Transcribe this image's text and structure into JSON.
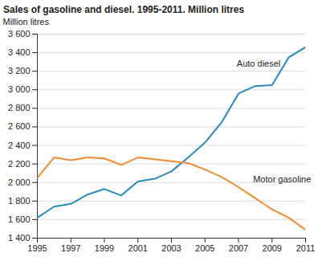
{
  "chart_data": {
    "type": "line",
    "title": "Sales of gasoline and diesel. 1995-2011. Million litres",
    "y_label": "Million litres",
    "x": [
      1995,
      1996,
      1997,
      1998,
      1999,
      2000,
      2001,
      2002,
      2003,
      2004,
      2005,
      2006,
      2007,
      2008,
      2009,
      2010,
      2011
    ],
    "series": [
      {
        "name": "Auto diesel",
        "color": "#2a8ac0",
        "values": [
          1620,
          1740,
          1770,
          1870,
          1930,
          1860,
          2010,
          2040,
          2120,
          2270,
          2430,
          2650,
          2960,
          3040,
          3050,
          3350,
          3460
        ]
      },
      {
        "name": "Motor gasoline",
        "color": "#f28a30",
        "values": [
          2050,
          2270,
          2240,
          2270,
          2260,
          2190,
          2270,
          2250,
          2230,
          2210,
          2140,
          2060,
          1950,
          1830,
          1710,
          1620,
          1490
        ]
      }
    ],
    "annotations": [
      {
        "text": "Auto diesel",
        "x": 2008.2,
        "y": 3280
      },
      {
        "text": "Motor gasoline",
        "x": 2009.6,
        "y": 2030
      }
    ],
    "xlim": [
      1995,
      2011
    ],
    "xticks": [
      1995,
      1997,
      1999,
      2001,
      2003,
      2005,
      2007,
      2009,
      2011
    ],
    "ylim": [
      1400,
      3600
    ],
    "yticks": [
      {
        "value": 1400,
        "label": "1 400"
      },
      {
        "value": 1600,
        "label": "1 600"
      },
      {
        "value": 1800,
        "label": "1 800"
      },
      {
        "value": 2000,
        "label": "2 000"
      },
      {
        "value": 2200,
        "label": "2 200"
      },
      {
        "value": 2400,
        "label": "2 400"
      },
      {
        "value": 2600,
        "label": "2 600"
      },
      {
        "value": 2800,
        "label": "2 800"
      },
      {
        "value": 3000,
        "label": "3 000"
      },
      {
        "value": 3200,
        "label": "3 200"
      },
      {
        "value": 3400,
        "label": "3 400"
      },
      {
        "value": 3600,
        "label": "3 600"
      }
    ],
    "grid": true
  }
}
